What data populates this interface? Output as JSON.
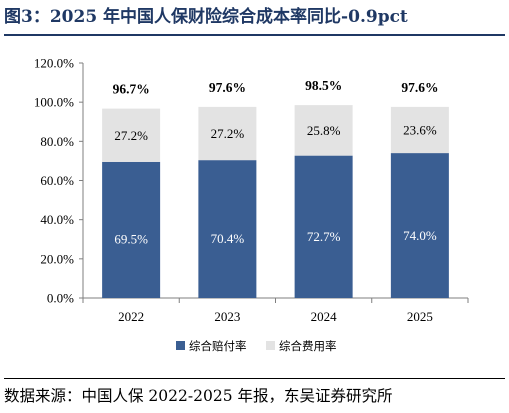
{
  "title": "图3：2025 年中国人保财险综合成本率同比-0.9pct",
  "source": "数据来源：中国人保 2022-2025 年报，东吴证券研究所",
  "chart_data": {
    "type": "bar",
    "stacked": true,
    "categories": [
      "2022",
      "2023",
      "2024",
      "2025"
    ],
    "series": [
      {
        "name": "综合赔付率",
        "values": [
          69.5,
          70.4,
          72.7,
          74.0
        ],
        "labels": [
          "69.5%",
          "70.4%",
          "72.7%",
          "74.0%"
        ],
        "color": "#3a5e92",
        "label_color": "#ffffff"
      },
      {
        "name": "综合费用率",
        "values": [
          27.2,
          27.2,
          25.8,
          23.6
        ],
        "labels": [
          "27.2%",
          "27.2%",
          "25.8%",
          "23.6%"
        ],
        "color": "#e3e3e3",
        "label_color": "#000000"
      }
    ],
    "totals": [
      "96.7%",
      "97.6%",
      "98.5%",
      "97.6%"
    ],
    "ylim": [
      0,
      120
    ],
    "ytick_values": [
      0,
      20,
      40,
      60,
      80,
      100,
      120
    ],
    "yticks": [
      "0.0%",
      "20.0%",
      "40.0%",
      "60.0%",
      "80.0%",
      "100.0%",
      "120.0%"
    ],
    "legend_position": "bottom",
    "grid": false
  }
}
